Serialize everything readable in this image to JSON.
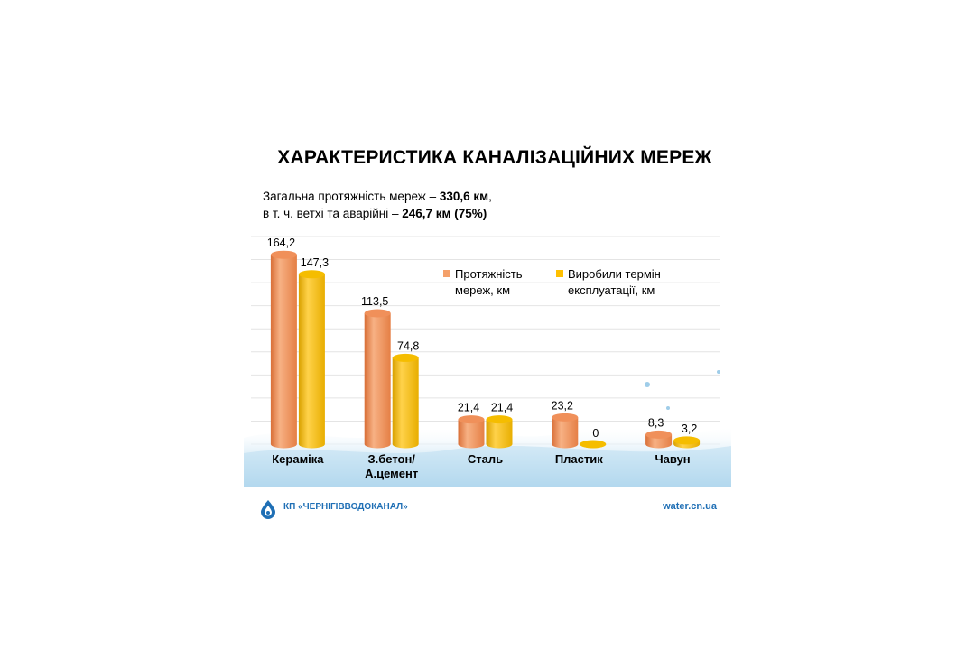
{
  "title": "ХАРАКТЕРИСТИКА КАНАЛІЗАЦІЙНИХ МЕРЕЖ",
  "summary": {
    "line1_prefix": "Загальна протяжність мереж – ",
    "line1_value": "330,6 км",
    "line1_suffix": ",",
    "line2_prefix": "в т. ч.  ветхі та аварійні – ",
    "line2_value": "246,7 км (75%)"
  },
  "footer": {
    "org_name": "КП «ЧЕРНІГІВВОДОКАНАЛ»",
    "url": "water.cn.ua"
  },
  "colors": {
    "series1": "#f4a06a",
    "series2": "#ffc000",
    "accent": "#1f6fb5"
  },
  "chart_data": {
    "type": "bar",
    "categories": [
      "Кераміка",
      "З.бетон/\nА.цемент",
      "Сталь",
      "Пластик",
      "Чавун"
    ],
    "series": [
      {
        "name": "Протяжність мереж, км",
        "values": [
          164.2,
          113.5,
          21.4,
          23.2,
          8.3
        ],
        "labels": [
          "164,2",
          "113,5",
          "21,4",
          "23,2",
          "8,3"
        ],
        "color": "#f4a06a"
      },
      {
        "name": "Виробили термін експлуатації, км",
        "values": [
          147.3,
          74.8,
          21.4,
          0,
          3.2
        ],
        "labels": [
          "147,3",
          "74,8",
          "21,4",
          "0",
          "3,2"
        ],
        "color": "#ffc000"
      }
    ],
    "ylim": [
      0,
      180
    ],
    "grid": true,
    "legend": "top-right"
  }
}
